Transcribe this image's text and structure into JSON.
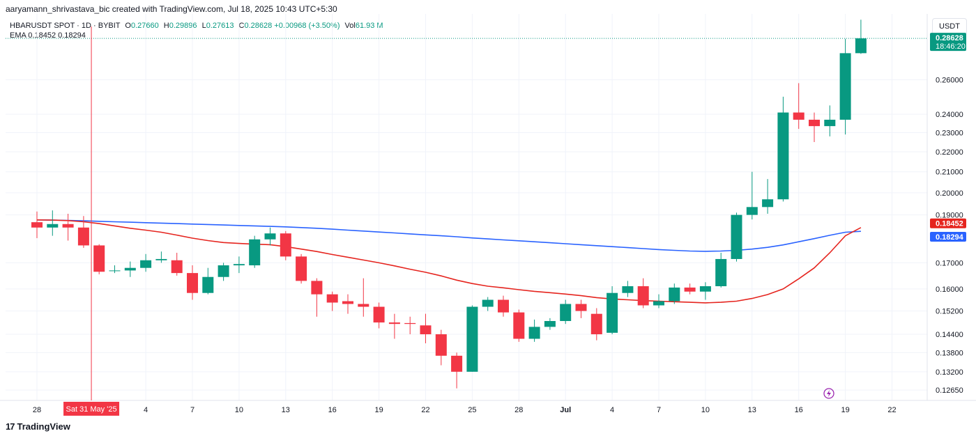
{
  "header": {
    "credit": "aaryamann_shrivastava_bic created with TradingView.com, Jul 18, 2025 10:43 UTC+5:30"
  },
  "legend": {
    "symbol": "HBARUSDT SPOT · 1D · BYBIT",
    "o_label": "O",
    "o_value": "0.27660",
    "h_label": "H",
    "h_value": "0.29896",
    "l_label": "L",
    "l_value": "0.27613",
    "c_label": "C",
    "c_value": "0.28628",
    "change": "+0.00968 (+3.50%)",
    "vol_label": "Vol",
    "vol_value": "61.93 M",
    "ema_label": "EMA",
    "ema_value_1": "0.18452",
    "ema_value_2": "0.18294"
  },
  "currency_button": "USDT",
  "footer": {
    "brand": "TradingView",
    "mark": "17"
  },
  "colors": {
    "up": "#089981",
    "down": "#f23645",
    "ema_fast": "#e5241e",
    "ema_slow": "#2962ff",
    "crosshair": "#f23645",
    "grid": "#f0f3fa"
  },
  "chart_data": {
    "type": "candlestick",
    "title": "HBARUSDT SPOT · 1D · BYBIT",
    "y_scale": "log",
    "ylim": [
      0.1235,
      0.303
    ],
    "price_ticks": [
      "0.26000",
      "0.24000",
      "0.23000",
      "0.22000",
      "0.21000",
      "0.20000",
      "0.19000",
      "0.17000",
      "0.16000",
      "0.15200",
      "0.14400",
      "0.13800",
      "0.13200",
      "0.12650"
    ],
    "time_ticks": [
      {
        "label": "28",
        "idx": 0
      },
      {
        "label": "4",
        "idx": 7
      },
      {
        "label": "7",
        "idx": 10
      },
      {
        "label": "10",
        "idx": 13
      },
      {
        "label": "13",
        "idx": 16
      },
      {
        "label": "16",
        "idx": 19
      },
      {
        "label": "19",
        "idx": 22
      },
      {
        "label": "22",
        "idx": 25
      },
      {
        "label": "25",
        "idx": 28
      },
      {
        "label": "28",
        "idx": 31
      },
      {
        "label": "Jul",
        "idx": 34
      },
      {
        "label": "4",
        "idx": 37
      },
      {
        "label": "7",
        "idx": 40
      },
      {
        "label": "10",
        "idx": 43
      },
      {
        "label": "13",
        "idx": 46
      },
      {
        "label": "16",
        "idx": 49
      },
      {
        "label": "19",
        "idx": 52
      },
      {
        "label": "22",
        "idx": 55
      }
    ],
    "crosshair": {
      "label": "Sat 31 May '25",
      "idx": 3.5
    },
    "last_price": {
      "value": "0.28628",
      "countdown": "18:46:20"
    },
    "ema_labels": [
      {
        "value": "0.18452",
        "color": "#e5241e"
      },
      {
        "value": "0.18294",
        "color": "#2962ff"
      }
    ],
    "candles": [
      {
        "o": 0.1868,
        "h": 0.1915,
        "l": 0.18,
        "c": 0.1845
      },
      {
        "o": 0.1845,
        "h": 0.192,
        "l": 0.181,
        "c": 0.186
      },
      {
        "o": 0.186,
        "h": 0.1905,
        "l": 0.179,
        "c": 0.1845
      },
      {
        "o": 0.1845,
        "h": 0.1895,
        "l": 0.176,
        "c": 0.177
      },
      {
        "o": 0.177,
        "h": 0.1775,
        "l": 0.1655,
        "c": 0.1665
      },
      {
        "o": 0.1668,
        "h": 0.169,
        "l": 0.166,
        "c": 0.167
      },
      {
        "o": 0.167,
        "h": 0.1705,
        "l": 0.1645,
        "c": 0.168
      },
      {
        "o": 0.168,
        "h": 0.1735,
        "l": 0.1665,
        "c": 0.171
      },
      {
        "o": 0.171,
        "h": 0.1745,
        "l": 0.17,
        "c": 0.1715
      },
      {
        "o": 0.171,
        "h": 0.174,
        "l": 0.165,
        "c": 0.166
      },
      {
        "o": 0.166,
        "h": 0.169,
        "l": 0.156,
        "c": 0.1585
      },
      {
        "o": 0.1585,
        "h": 0.168,
        "l": 0.158,
        "c": 0.1645
      },
      {
        "o": 0.1645,
        "h": 0.17,
        "l": 0.163,
        "c": 0.169
      },
      {
        "o": 0.169,
        "h": 0.1725,
        "l": 0.166,
        "c": 0.1695
      },
      {
        "o": 0.169,
        "h": 0.181,
        "l": 0.168,
        "c": 0.1795
      },
      {
        "o": 0.1795,
        "h": 0.1845,
        "l": 0.177,
        "c": 0.182
      },
      {
        "o": 0.182,
        "h": 0.183,
        "l": 0.171,
        "c": 0.1725
      },
      {
        "o": 0.1725,
        "h": 0.1735,
        "l": 0.162,
        "c": 0.163
      },
      {
        "o": 0.163,
        "h": 0.164,
        "l": 0.15,
        "c": 0.158
      },
      {
        "o": 0.158,
        "h": 0.159,
        "l": 0.152,
        "c": 0.155
      },
      {
        "o": 0.1555,
        "h": 0.158,
        "l": 0.151,
        "c": 0.1545
      },
      {
        "o": 0.1545,
        "h": 0.164,
        "l": 0.15,
        "c": 0.1535
      },
      {
        "o": 0.1535,
        "h": 0.155,
        "l": 0.146,
        "c": 0.148
      },
      {
        "o": 0.148,
        "h": 0.151,
        "l": 0.1425,
        "c": 0.1475
      },
      {
        "o": 0.1478,
        "h": 0.15,
        "l": 0.144,
        "c": 0.1475
      },
      {
        "o": 0.147,
        "h": 0.151,
        "l": 0.141,
        "c": 0.144
      },
      {
        "o": 0.144,
        "h": 0.1455,
        "l": 0.134,
        "c": 0.137
      },
      {
        "o": 0.137,
        "h": 0.138,
        "l": 0.127,
        "c": 0.132
      },
      {
        "o": 0.132,
        "h": 0.154,
        "l": 0.132,
        "c": 0.1535
      },
      {
        "o": 0.1535,
        "h": 0.157,
        "l": 0.152,
        "c": 0.156
      },
      {
        "o": 0.156,
        "h": 0.1575,
        "l": 0.15,
        "c": 0.1515
      },
      {
        "o": 0.1515,
        "h": 0.1525,
        "l": 0.1415,
        "c": 0.1425
      },
      {
        "o": 0.1425,
        "h": 0.149,
        "l": 0.1415,
        "c": 0.1465
      },
      {
        "o": 0.1465,
        "h": 0.1495,
        "l": 0.1455,
        "c": 0.1485
      },
      {
        "o": 0.1485,
        "h": 0.156,
        "l": 0.1475,
        "c": 0.1545
      },
      {
        "o": 0.1545,
        "h": 0.156,
        "l": 0.1495,
        "c": 0.152
      },
      {
        "o": 0.151,
        "h": 0.153,
        "l": 0.142,
        "c": 0.144
      },
      {
        "o": 0.1445,
        "h": 0.161,
        "l": 0.144,
        "c": 0.1585
      },
      {
        "o": 0.1585,
        "h": 0.163,
        "l": 0.157,
        "c": 0.161
      },
      {
        "o": 0.161,
        "h": 0.164,
        "l": 0.153,
        "c": 0.154
      },
      {
        "o": 0.154,
        "h": 0.158,
        "l": 0.153,
        "c": 0.1555
      },
      {
        "o": 0.1555,
        "h": 0.162,
        "l": 0.1545,
        "c": 0.1605
      },
      {
        "o": 0.1605,
        "h": 0.162,
        "l": 0.158,
        "c": 0.159
      },
      {
        "o": 0.159,
        "h": 0.1625,
        "l": 0.156,
        "c": 0.161
      },
      {
        "o": 0.161,
        "h": 0.174,
        "l": 0.1605,
        "c": 0.1715
      },
      {
        "o": 0.1715,
        "h": 0.191,
        "l": 0.1705,
        "c": 0.19
      },
      {
        "o": 0.19,
        "h": 0.21,
        "l": 0.188,
        "c": 0.1935
      },
      {
        "o": 0.1935,
        "h": 0.2065,
        "l": 0.1905,
        "c": 0.197
      },
      {
        "o": 0.197,
        "h": 0.25,
        "l": 0.196,
        "c": 0.241
      },
      {
        "o": 0.241,
        "h": 0.258,
        "l": 0.232,
        "c": 0.237
      },
      {
        "o": 0.237,
        "h": 0.241,
        "l": 0.225,
        "c": 0.2335
      },
      {
        "o": 0.2335,
        "h": 0.245,
        "l": 0.228,
        "c": 0.237
      },
      {
        "o": 0.237,
        "h": 0.286,
        "l": 0.229,
        "c": 0.2766
      },
      {
        "o": 0.2766,
        "h": 0.29896,
        "l": 0.27613,
        "c": 0.28628
      }
    ],
    "ema_fast": [
      0.1878,
      0.1877,
      0.1875,
      0.187,
      0.1862,
      0.1852,
      0.1842,
      0.1834,
      0.1825,
      0.1813,
      0.18,
      0.179,
      0.1782,
      0.1778,
      0.1775,
      0.1773,
      0.1765,
      0.1755,
      0.1745,
      0.1733,
      0.1722,
      0.1711,
      0.17,
      0.1688,
      0.1675,
      0.1663,
      0.1649,
      0.1633,
      0.162,
      0.161,
      0.1604,
      0.1597,
      0.1591,
      0.1586,
      0.1581,
      0.1575,
      0.1568,
      0.1563,
      0.156,
      0.1557,
      0.1555,
      0.1553,
      0.1551,
      0.1549,
      0.1551,
      0.1555,
      0.1565,
      0.1579,
      0.16,
      0.1638,
      0.168,
      0.174,
      0.181,
      0.1845
    ],
    "ema_slow": [
      0.1878,
      0.1877,
      0.1876,
      0.1874,
      0.1872,
      0.187,
      0.1868,
      0.1866,
      0.1864,
      0.1862,
      0.186,
      0.1858,
      0.1856,
      0.1854,
      0.1852,
      0.185,
      0.1848,
      0.1845,
      0.1842,
      0.1838,
      0.1834,
      0.183,
      0.1826,
      0.1822,
      0.1818,
      0.1814,
      0.181,
      0.1806,
      0.1801,
      0.1797,
      0.1793,
      0.1789,
      0.1785,
      0.1781,
      0.1777,
      0.1773,
      0.1769,
      0.1765,
      0.1761,
      0.1757,
      0.1753,
      0.175,
      0.1747,
      0.1746,
      0.1747,
      0.175,
      0.1755,
      0.1762,
      0.1772,
      0.1785,
      0.1798,
      0.1812,
      0.1825,
      0.1829
    ]
  }
}
